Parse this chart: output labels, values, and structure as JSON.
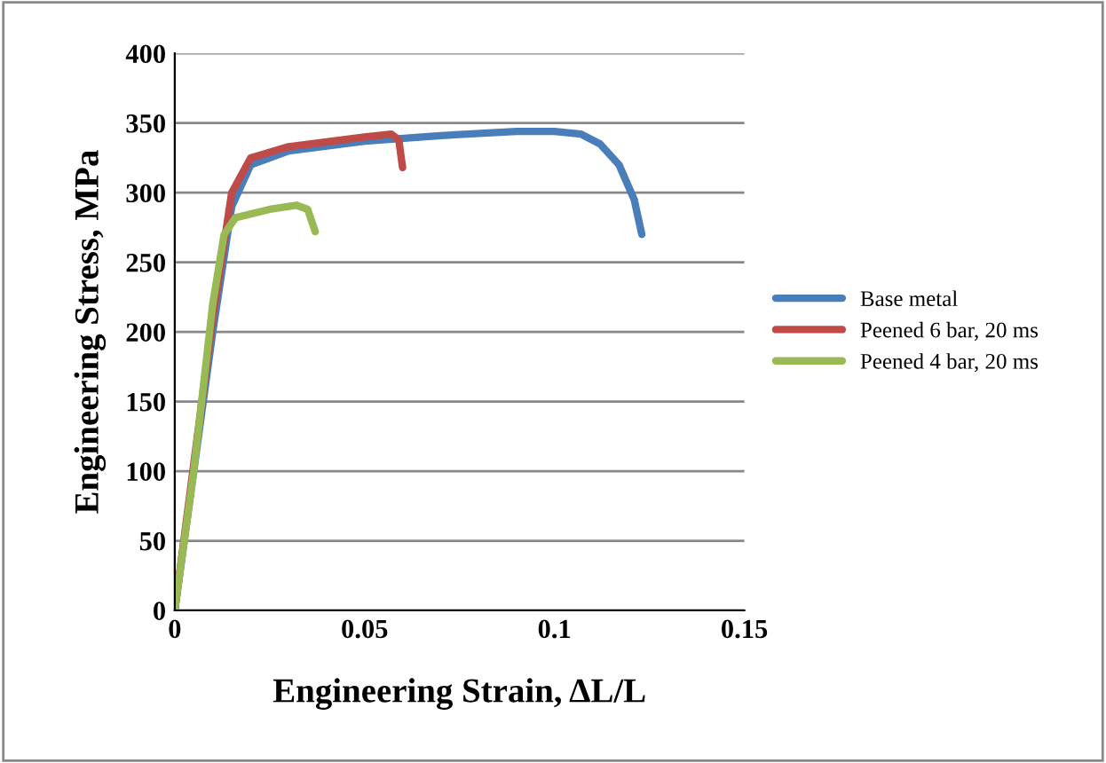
{
  "chart_data": {
    "type": "line",
    "xlabel": "Engineering Strain, ΔL/L",
    "ylabel": "Engineering Stress, MPa",
    "xlim": [
      0,
      0.15
    ],
    "xticks": [
      0,
      0.05,
      0.1,
      0.15
    ],
    "ylim": [
      0,
      400
    ],
    "yticks": [
      0,
      50,
      100,
      150,
      200,
      250,
      300,
      350,
      400
    ],
    "grid": "y",
    "legend": "right",
    "marker": "none",
    "line_style": "solid",
    "series": [
      {
        "name": "Base metal",
        "color": "#4a7ebb",
        "x": [
          0,
          0.005,
          0.01,
          0.015,
          0.02,
          0.03,
          0.05,
          0.07,
          0.09,
          0.1,
          0.107,
          0.112,
          0.117,
          0.121,
          0.123
        ],
        "values": [
          0,
          100,
          200,
          290,
          320,
          330,
          337,
          341,
          344,
          344,
          342,
          335,
          320,
          295,
          270
        ]
      },
      {
        "name": "Peened 6 bar, 20 ms",
        "color": "#be4b48",
        "x": [
          0,
          0.005,
          0.01,
          0.015,
          0.02,
          0.03,
          0.05,
          0.057,
          0.059,
          0.06
        ],
        "values": [
          0,
          105,
          210,
          300,
          325,
          333,
          340,
          342,
          338,
          318
        ]
      },
      {
        "name": "Peened 4 bar, 20 ms",
        "color": "#98b954",
        "x": [
          0,
          0.005,
          0.01,
          0.013,
          0.016,
          0.025,
          0.032,
          0.035,
          0.037
        ],
        "values": [
          0,
          100,
          220,
          270,
          282,
          288,
          291,
          288,
          272
        ]
      }
    ]
  }
}
